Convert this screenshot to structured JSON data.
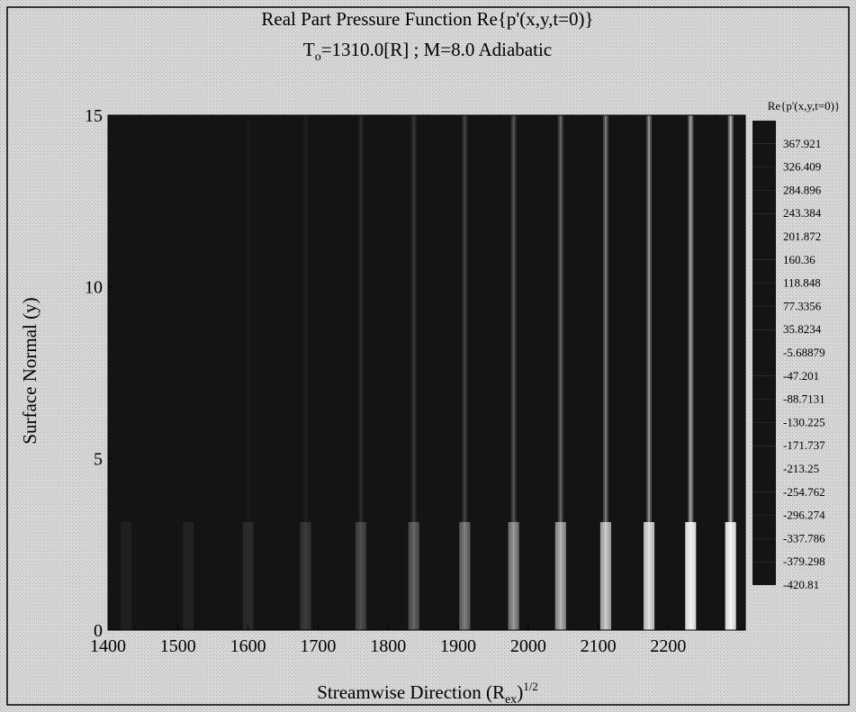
{
  "chart_data": {
    "type": "contour",
    "title": "Real Part Pressure Function Re{p'(x,y,t=0)}",
    "subtitle_parts": [
      "T",
      "o",
      "=1310.0[R] ; M=8.0 Adiabatic"
    ],
    "xlabel_parts": [
      "Streamwise Direction (R",
      "ex",
      ")",
      "1/2"
    ],
    "ylabel": "Surface Normal (y)",
    "xlim": [
      1400,
      2310
    ],
    "xticks": [
      1400,
      1500,
      1600,
      1700,
      1800,
      1900,
      2000,
      2100,
      2200
    ],
    "ylim": [
      0,
      15
    ],
    "yticks": [
      0,
      5,
      10,
      15
    ],
    "field_color": "#141414",
    "colorbar": {
      "title": "Re{p'(x,y,t=0)}",
      "color": "#141414",
      "levels": [
        367.921,
        326.409,
        284.896,
        243.384,
        201.872,
        160.36,
        118.848,
        77.3356,
        35.8234,
        -5.68879,
        -47.201,
        -88.7131,
        -130.225,
        -171.737,
        -213.25,
        -254.762,
        -296.274,
        -337.786,
        -379.298,
        -420.81
      ]
    }
  }
}
